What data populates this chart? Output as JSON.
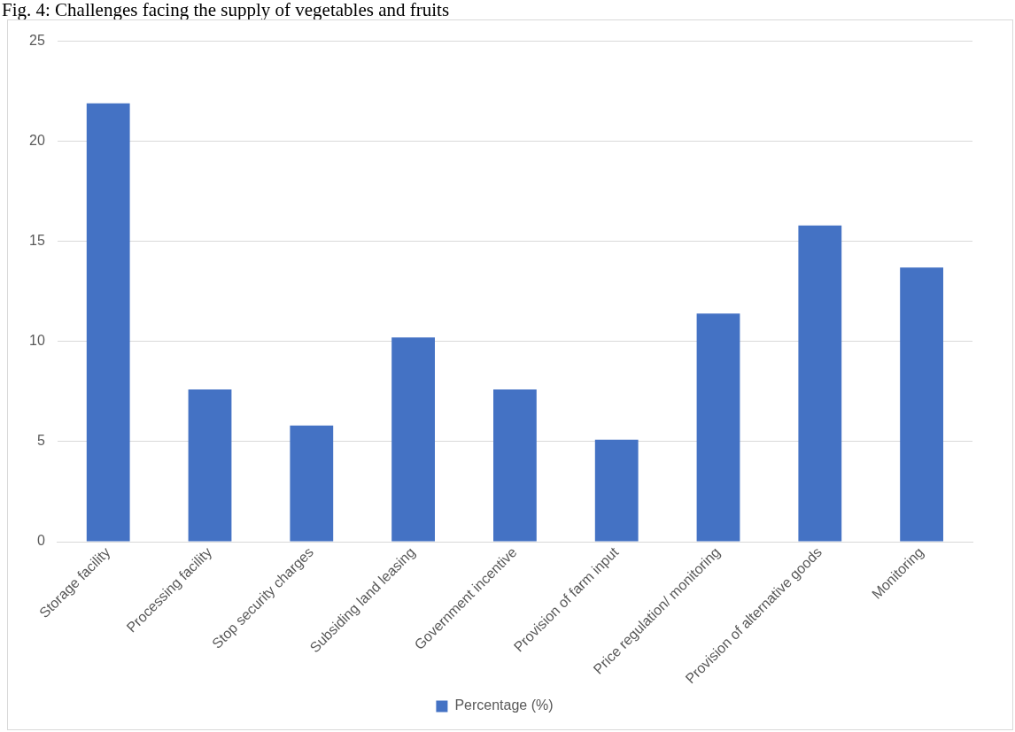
{
  "chart_data": {
    "type": "bar",
    "title": "Fig. 4: Challenges facing the supply of vegetables and fruits",
    "categories": [
      "Storage facility",
      "Processing facility",
      "Stop security charges",
      "Subsiding land leasing",
      "Government incentive",
      "Provision of farm input",
      "Price regulation/ monitoring",
      "Provision of alternative goods",
      "Monitoring"
    ],
    "series": [
      {
        "name": "Percentage (%)",
        "color": "#4472c4",
        "values": [
          21.9,
          7.6,
          5.8,
          10.2,
          7.6,
          5.1,
          11.4,
          15.8,
          13.7
        ]
      }
    ],
    "ylim": [
      0,
      25
    ],
    "yticks": [
      0,
      5,
      10,
      15,
      20,
      25
    ],
    "grid": "y",
    "legend": "bottom"
  }
}
